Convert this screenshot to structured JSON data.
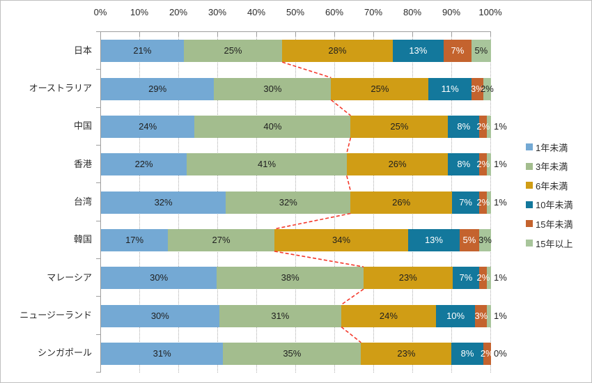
{
  "chart_data": {
    "type": "bar",
    "subtype": "horizontal-100pct-stacked",
    "title": "",
    "categories": [
      "日本",
      "オーストラリア",
      "中国",
      "香港",
      "台湾",
      "韓国",
      "マレーシア",
      "ニュージーランド",
      "シンガポール"
    ],
    "series": [
      {
        "name": "1年未満",
        "color": "#74a9d4",
        "values": [
          21,
          29,
          24,
          22,
          32,
          17,
          30,
          30,
          31
        ]
      },
      {
        "name": "3年未満",
        "color": "#a3bd8e",
        "values": [
          25,
          30,
          40,
          41,
          32,
          27,
          38,
          31,
          35
        ]
      },
      {
        "name": "6年未満",
        "color": "#d09d15",
        "values": [
          28,
          25,
          25,
          26,
          26,
          34,
          23,
          24,
          23
        ]
      },
      {
        "name": "10年未満",
        "color": "#13789c",
        "values": [
          13,
          11,
          8,
          8,
          7,
          13,
          7,
          10,
          8
        ]
      },
      {
        "name": "15年未満",
        "color": "#c4632e",
        "values": [
          7,
          3,
          2,
          2,
          2,
          5,
          2,
          3,
          2
        ]
      },
      {
        "name": "15年以上",
        "color": "#a8c59b",
        "values": [
          5,
          2,
          1,
          1,
          1,
          3,
          1,
          1,
          0
        ]
      }
    ],
    "x_axis": {
      "tick_labels": [
        "0%",
        "10%",
        "20%",
        "30%",
        "40%",
        "50%",
        "60%",
        "70%",
        "80%",
        "90%",
        "100%"
      ],
      "min": 0,
      "max": 100,
      "position": "top"
    },
    "data_label_format": "percent",
    "data_label_text_colors": [
      "#1f1f1f",
      "#1f1f1f",
      "#1f1f1f",
      "#ffffff",
      "#ffffff",
      "#1f1f1f"
    ],
    "legend_position": "right",
    "grid": "vertical-dotted",
    "connector_line": {
      "traces_boundary_after_series": "3年未満",
      "color": "#f4392c",
      "style": "dashed"
    },
    "axis_color": "#9d9d9d",
    "gridline_color": "#ababab"
  }
}
